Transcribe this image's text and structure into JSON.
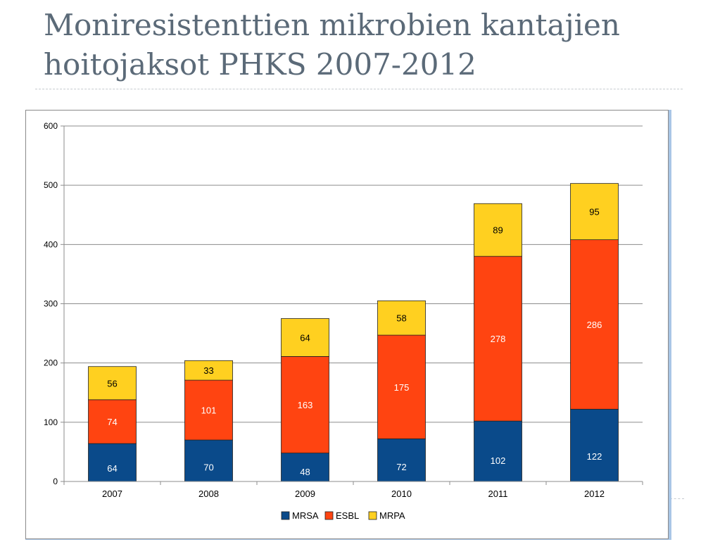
{
  "slide": {
    "title": "Moniresistenttien mikrobien kantajien hoitojaksot PHKS 2007-2012"
  },
  "chart_data": {
    "type": "bar",
    "stacked": true,
    "categories": [
      "2007",
      "2008",
      "2009",
      "2010",
      "2011",
      "2012"
    ],
    "series": [
      {
        "name": "MRSA",
        "color": "#0a4a8a",
        "label_color": "#ffffff",
        "values": [
          64,
          70,
          48,
          72,
          102,
          122
        ]
      },
      {
        "name": "ESBL",
        "color": "#ff4411",
        "label_color": "#ffffff",
        "values": [
          74,
          101,
          163,
          175,
          278,
          286
        ]
      },
      {
        "name": "MRPA",
        "color": "#ffd020",
        "label_color": "#000000",
        "values": [
          56,
          33,
          64,
          58,
          89,
          95
        ]
      }
    ],
    "yticks": [
      "0",
      "100",
      "200",
      "300",
      "400",
      "500",
      "600"
    ],
    "ylim": [
      0,
      600
    ],
    "grid": true,
    "legend": "bottom-center"
  }
}
